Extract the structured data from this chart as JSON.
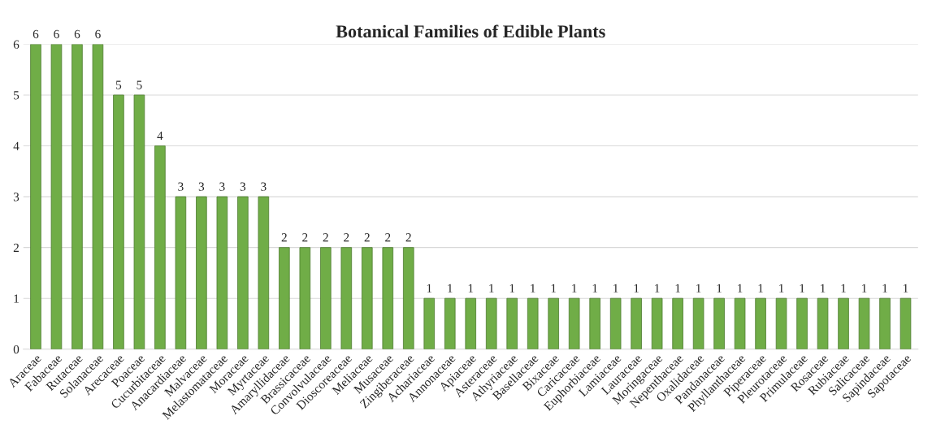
{
  "chart_data": {
    "type": "bar",
    "title": "Botanical Families of Edible Plants",
    "categories": [
      "Araceae",
      "Fabaceae",
      "Rutaceae",
      "Solanaceae",
      "Arecaceae",
      "Poaceae",
      "Cucurbitaceae",
      "Anacardiaceae",
      "Malvaceae",
      "Melastomataceae",
      "Moraceae",
      "Myrtaceae",
      "Amaryllidaceae",
      "Brassicaceae",
      "Convolvulaceae",
      "Dioscoreaceae",
      "Meliaceae",
      "Musaceae",
      "Zingiberaceae",
      "Achariaceae",
      "Annonaceae",
      "Apiaceae",
      "Asteraceae",
      "Athyriaceae",
      "Basellaceae",
      "Bixaceae",
      "Caricaceae",
      "Euphorbiaceae",
      "Lamiaceae",
      "Lauraceae",
      "Moringaceae",
      "Nepenthaceae",
      "Oxalidaceae",
      "Pandanaceae",
      "Phyllanthaceae",
      "Piperaceae",
      "Pleurotaceae",
      "Primulaceae",
      "Rosaceae",
      "Rubiaceae",
      "Salicaceae",
      "Sapindaceae",
      "Sapotaceae"
    ],
    "values": [
      6,
      6,
      6,
      6,
      5,
      5,
      4,
      3,
      3,
      3,
      3,
      3,
      2,
      2,
      2,
      2,
      2,
      2,
      2,
      1,
      1,
      1,
      1,
      1,
      1,
      1,
      1,
      1,
      1,
      1,
      1,
      1,
      1,
      1,
      1,
      1,
      1,
      1,
      1,
      1,
      1,
      1,
      1
    ],
    "color": "#70ad47",
    "ylim": [
      0,
      6
    ],
    "yticks": [
      0,
      1,
      2,
      3,
      4,
      5,
      6
    ],
    "grid": "y",
    "data_labels": true
  }
}
